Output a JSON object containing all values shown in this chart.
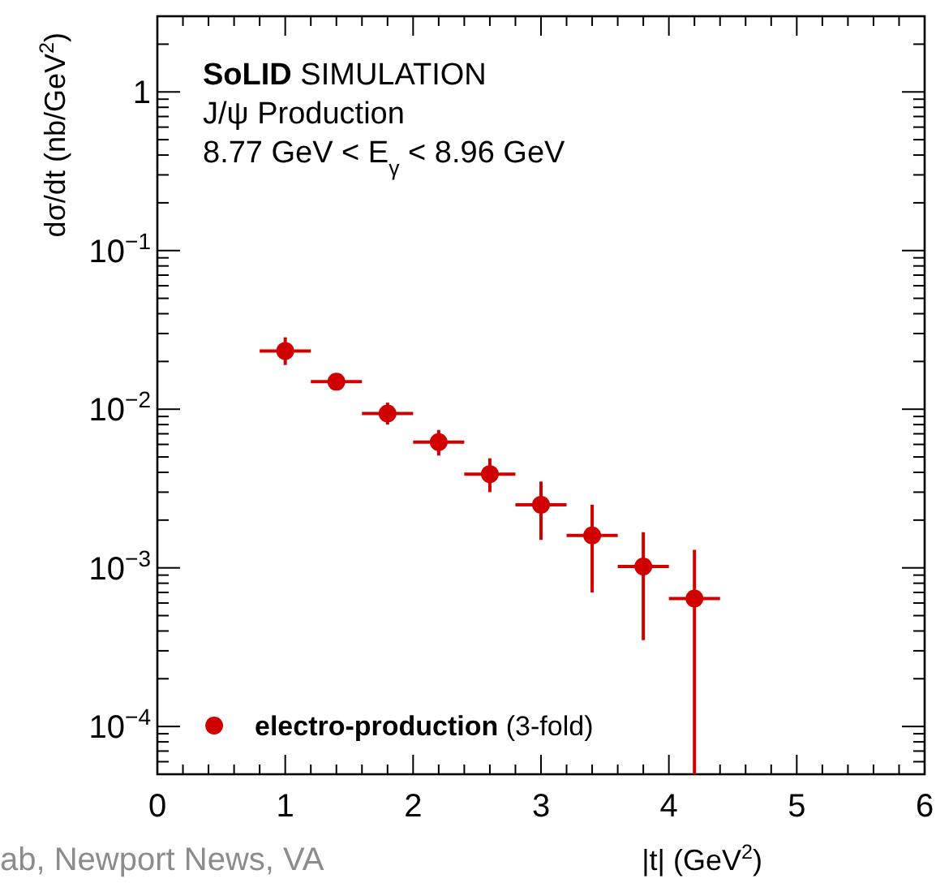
{
  "chart_data": {
    "type": "scatter",
    "ylabel": "dσ/dt (nb/GeV$^{2}$)",
    "xlabel": "|t| (GeV$^{2}$)",
    "annotations": [
      "SoLID SIMULATION",
      "J/ψ Production",
      "8.77 GeV < E$_{γ}$ < 8.96 GeV",
      "ab, Newport News, VA"
    ],
    "log": "y",
    "marker": "circle",
    "legend": "bottom left",
    "xlim": [
      0,
      6
    ],
    "xticks": [
      0,
      {
        "value": 0.2,
        "label": null
      },
      {
        "value": 0.4,
        "label": null
      },
      {
        "value": 0.6,
        "label": null
      },
      {
        "value": 0.8,
        "label": null
      },
      1,
      {
        "value": 1.2,
        "label": null
      },
      {
        "value": 1.4,
        "label": null
      },
      {
        "value": 1.6,
        "label": null
      },
      {
        "value": 1.8,
        "label": null
      },
      2,
      {
        "value": 2.2,
        "label": null
      },
      {
        "value": 2.4,
        "label": null
      },
      {
        "value": 2.6,
        "label": null
      },
      {
        "value": 2.8,
        "label": null
      },
      3,
      {
        "value": 3.2,
        "label": null
      },
      {
        "value": 3.4,
        "label": null
      },
      {
        "value": 3.6,
        "label": null
      },
      {
        "value": 3.8,
        "label": null
      },
      4,
      {
        "value": 4.2,
        "label": null
      },
      {
        "value": 4.4,
        "label": null
      },
      {
        "value": 4.6,
        "label": null
      },
      {
        "value": 4.8,
        "label": null
      },
      5,
      {
        "value": 5.2,
        "label": null
      },
      {
        "value": 5.4,
        "label": null
      },
      {
        "value": 5.6,
        "label": null
      },
      {
        "value": 5.8,
        "label": null
      },
      6
    ],
    "ylim": [
      5e-05,
      3
    ],
    "yticks": [
      {
        "value": 6e-05,
        "label": null
      },
      {
        "value": 7e-05,
        "label": null
      },
      {
        "value": 8e-05,
        "label": null
      },
      {
        "value": 9e-05,
        "label": null
      },
      {
        "value": 0.0001,
        "label": "10$^{−4}$"
      },
      {
        "value": 0.0002,
        "label": null
      },
      {
        "value": 0.0003,
        "label": null
      },
      {
        "value": 0.0004,
        "label": null
      },
      {
        "value": 0.0005,
        "label": null
      },
      {
        "value": 0.0006,
        "label": null
      },
      {
        "value": 0.0007,
        "label": null
      },
      {
        "value": 0.0008,
        "label": null
      },
      {
        "value": 0.0009,
        "label": null
      },
      {
        "value": 0.001,
        "label": "10$^{−3}$"
      },
      {
        "value": 0.002,
        "label": null
      },
      {
        "value": 0.003,
        "label": null
      },
      {
        "value": 0.004,
        "label": null
      },
      {
        "value": 0.005,
        "label": null
      },
      {
        "value": 0.006,
        "label": null
      },
      {
        "value": 0.007,
        "label": null
      },
      {
        "value": 0.008,
        "label": null
      },
      {
        "value": 0.009,
        "label": null
      },
      {
        "value": 0.01,
        "label": "10$^{−2}$"
      },
      {
        "value": 0.02,
        "label": null
      },
      {
        "value": 0.03,
        "label": null
      },
      {
        "value": 0.04,
        "label": null
      },
      {
        "value": 0.05,
        "label": null
      },
      {
        "value": 0.06,
        "label": null
      },
      {
        "value": 0.07,
        "label": null
      },
      {
        "value": 0.08,
        "label": null
      },
      {
        "value": 0.09,
        "label": null
      },
      {
        "value": 0.1,
        "label": "10$^{−1}$"
      },
      {
        "value": 0.2,
        "label": null
      },
      {
        "value": 0.3,
        "label": null
      },
      {
        "value": 0.4,
        "label": null
      },
      {
        "value": 0.5,
        "label": null
      },
      {
        "value": 0.6,
        "label": null
      },
      {
        "value": 0.7,
        "label": null
      },
      {
        "value": 0.8,
        "label": null
      },
      {
        "value": 0.9,
        "label": null
      },
      1,
      {
        "value": 2,
        "label": null
      },
      {
        "value": 3,
        "label": null
      }
    ],
    "x": [
      1.0,
      1.4,
      1.8,
      2.2,
      2.6,
      3.0,
      3.4,
      3.8,
      4.2
    ],
    "series": [
      {
        "name": "electro-production (3-fold)",
        "color": "#d00000",
        "values": [
          0.0233,
          0.0149,
          0.0094,
          0.0062,
          0.0039,
          0.0025,
          0.0016,
          0.00102,
          0.00064
        ],
        "errors": [
          [
            0.019,
            0.0284
          ],
          [
            0.0132,
            0.0163
          ],
          [
            0.008,
            0.011
          ],
          [
            0.0051,
            0.0074
          ],
          [
            0.003,
            0.0049
          ],
          [
            0.0015,
            0.0035
          ],
          [
            0.0007,
            0.0025
          ],
          [
            0.00035,
            0.00168
          ],
          [
            5e-05,
            0.0013
          ]
        ],
        "xerrors": [
          0.2,
          0.2,
          0.2,
          0.2,
          0.2,
          0.2,
          0.2,
          0.2,
          0.2
        ]
      }
    ]
  }
}
